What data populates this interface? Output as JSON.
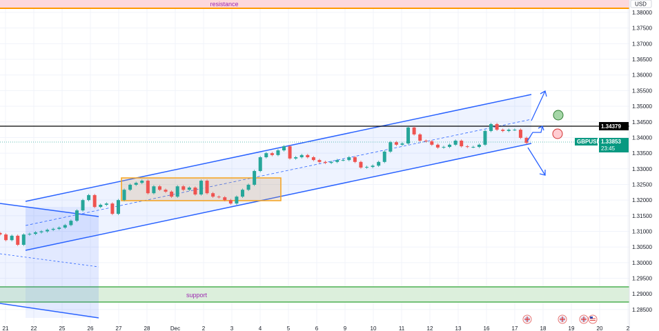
{
  "symbol": "GBPUSD",
  "currency": "USD",
  "current_price": "1.33853",
  "countdown": "23:45",
  "level_price": "1.34379",
  "zones": {
    "resistance": "resistance",
    "support": "support"
  },
  "colors": {
    "up": "#26a69a",
    "down": "#ef5350",
    "channel": "#2962ff",
    "box": "#f7a21b",
    "resistance_line": "#ff9800",
    "support_line": "#4caf50",
    "price_tag": "#089981",
    "level_line": "#000000"
  },
  "events": [
    "gb-flag-icon",
    "gb-flag-icon",
    "gb-flag-icon",
    "us-flag-icon"
  ],
  "chart_data": {
    "type": "candlestick",
    "title": "",
    "y_ticks": [
      "1.38000",
      "1.37500",
      "1.37000",
      "1.36500",
      "1.36000",
      "1.35500",
      "1.35000",
      "1.34500",
      "1.34000",
      "1.33500",
      "1.33000",
      "1.32500",
      "1.32000",
      "1.31500",
      "1.31000",
      "1.30500",
      "1.30000",
      "1.29500",
      "1.29000",
      "1.28500"
    ],
    "ylim": [
      1.2838,
      1.384
    ],
    "x_ticks": [
      "21",
      "22",
      "25",
      "26",
      "27",
      "28",
      "Dec",
      "2",
      "3",
      "4",
      "5",
      "6",
      "9",
      "10",
      "11",
      "12",
      "13",
      "16",
      "17",
      "18",
      "19",
      "20",
      "2"
    ],
    "grid": true,
    "closes": [
      1.309,
      1.3072,
      1.3086,
      1.3057,
      1.309,
      1.3092,
      1.3097,
      1.31,
      1.3105,
      1.3108,
      1.3112,
      1.312,
      1.3134,
      1.3167,
      1.32,
      1.3216,
      1.3178,
      1.3185,
      1.3189,
      1.3156,
      1.32,
      1.3233,
      1.3249,
      1.3255,
      1.3262,
      1.3222,
      1.3244,
      1.3233,
      1.3227,
      1.3211,
      1.3244,
      1.3233,
      1.324,
      1.3218,
      1.3262,
      1.3222,
      1.3211,
      1.3209,
      1.32,
      1.3189,
      1.3211,
      1.3233,
      1.3249,
      1.3293,
      1.3337,
      1.335,
      1.3344,
      1.3359,
      1.3372,
      1.3333,
      1.3337,
      1.3344,
      1.3337,
      1.3328,
      1.3322,
      1.3319,
      1.3322,
      1.3328,
      1.3328,
      1.3337,
      1.3322,
      1.3304,
      1.3306,
      1.331,
      1.3322,
      1.3355,
      1.3385,
      1.3377,
      1.3381,
      1.3432,
      1.341,
      1.339,
      1.3388,
      1.3377,
      1.3368,
      1.337,
      1.3377,
      1.339,
      1.3372,
      1.337,
      1.337,
      1.3377,
      1.3421,
      1.3443,
      1.3425,
      1.3421,
      1.3425,
      1.3425,
      1.3399,
      1.3383
    ]
  }
}
